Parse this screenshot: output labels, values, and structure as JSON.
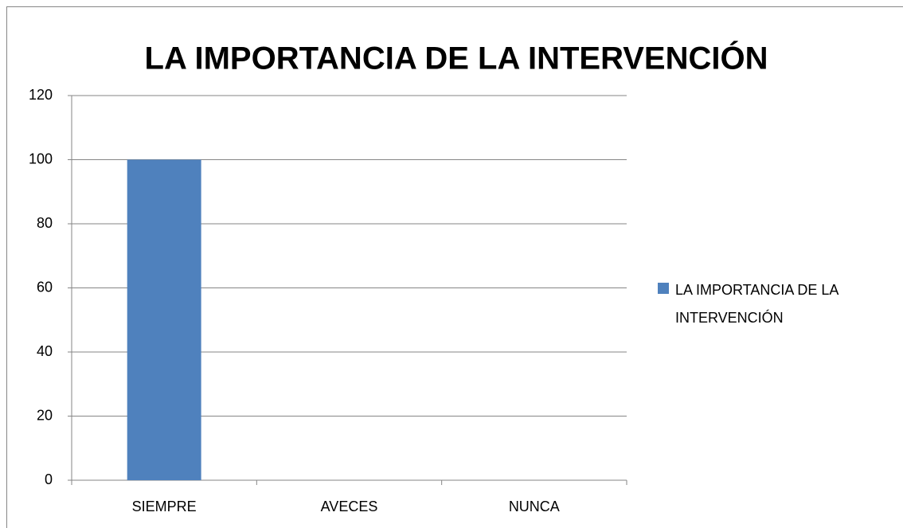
{
  "chart_data": {
    "type": "bar",
    "title": "LA IMPORTANCIA DE LA INTERVENCIÓN",
    "categories": [
      "SIEMPRE",
      "AVECES",
      "NUNCA"
    ],
    "series": [
      {
        "name": "LA IMPORTANCIA DE LA INTERVENCIÓN",
        "color": "#4f81bd",
        "values": [
          100,
          0,
          0
        ]
      }
    ],
    "ylim": [
      0,
      120
    ],
    "yticks": [
      0,
      20,
      40,
      60,
      80,
      100,
      120
    ],
    "grid": true,
    "legend": "right"
  }
}
